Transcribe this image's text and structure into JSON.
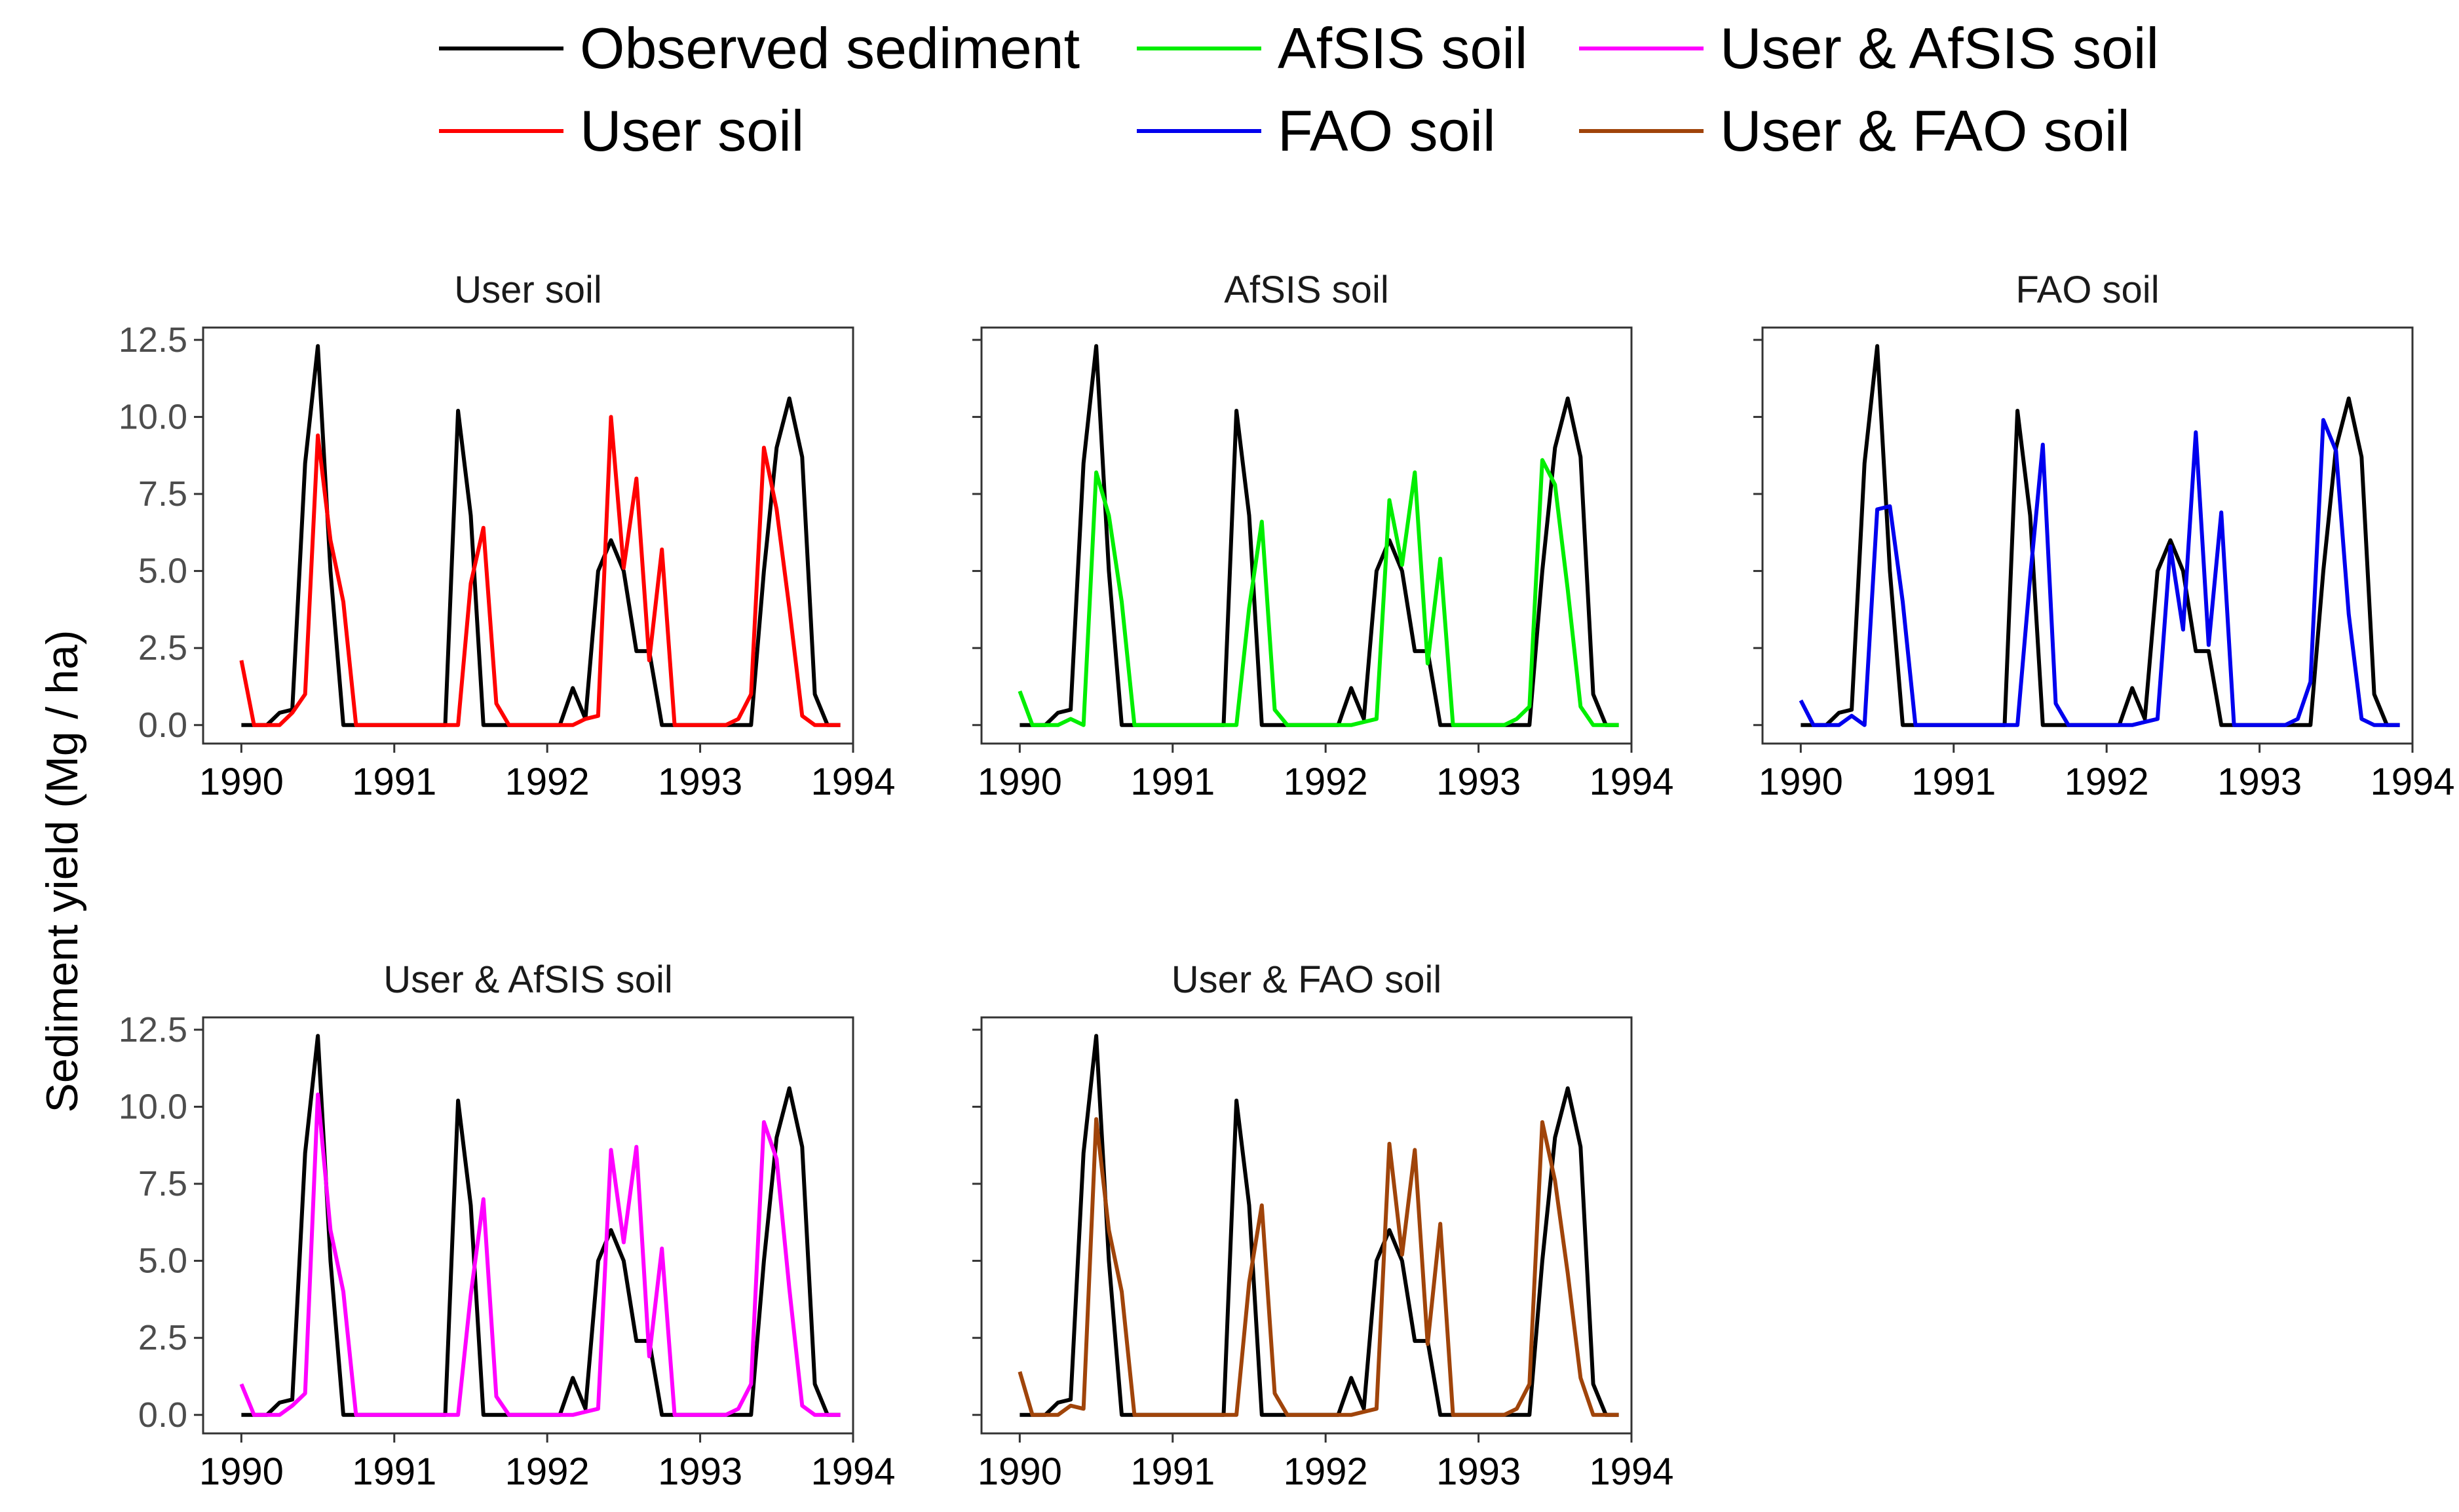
{
  "colors": {
    "Observed sediment": "#000000",
    "User soil": "#ff0000",
    "AfSIS soil": "#00ee00",
    "FAO soil": "#0000ee",
    "User & AfSIS soil": "#ff00ff",
    "User & FAO soil": "#a0440a"
  },
  "chart_data": {
    "type": "line",
    "ylabel": "Sediment yield (Mg / ha)",
    "xlabel": "",
    "xlim": [
      1989.75,
      1994.0
    ],
    "ylim": [
      -0.6,
      12.9
    ],
    "x_ticks": [
      1990,
      1991,
      1992,
      1993,
      1994
    ],
    "x_tick_labels": [
      "1990",
      "1991",
      "1992",
      "1993",
      "1994"
    ],
    "y_ticks": [
      0,
      2.5,
      5,
      7.5,
      10,
      12.5
    ],
    "y_tick_labels": [
      "0.0",
      "2.5",
      "5.0",
      "7.5",
      "10.0",
      "12.5"
    ],
    "legend": {
      "position": "top",
      "entries": [
        "Observed sediment",
        "AfSIS soil",
        "User & AfSIS soil",
        "User soil",
        "FAO soil",
        "User & FAO soil"
      ]
    },
    "x": [
      1990.0,
      1990.083,
      1990.167,
      1990.25,
      1990.333,
      1990.417,
      1990.5,
      1990.583,
      1990.667,
      1990.75,
      1990.833,
      1990.917,
      1991.0,
      1991.083,
      1991.167,
      1991.25,
      1991.333,
      1991.417,
      1991.5,
      1991.583,
      1991.667,
      1991.75,
      1991.833,
      1991.917,
      1992.0,
      1992.083,
      1992.167,
      1992.25,
      1992.333,
      1992.417,
      1992.5,
      1992.583,
      1992.667,
      1992.75,
      1992.833,
      1992.917,
      1993.0,
      1993.083,
      1993.167,
      1993.25,
      1993.333,
      1993.417,
      1993.5,
      1993.583,
      1993.667,
      1993.75,
      1993.833,
      1993.917
    ],
    "observed": {
      "name": "Observed sediment",
      "values": [
        0,
        0,
        0,
        0.4,
        0.5,
        8.5,
        12.3,
        5,
        0,
        0,
        0,
        0,
        0,
        0,
        0,
        0,
        0,
        10.2,
        6.8,
        0,
        0,
        0,
        0,
        0,
        0,
        0,
        1.2,
        0.2,
        5,
        6,
        5,
        2.4,
        2.4,
        0,
        0,
        0,
        0,
        0,
        0,
        0,
        0,
        5,
        9,
        10.6,
        8.7,
        1,
        0,
        0
      ]
    },
    "panels": [
      {
        "title": "User soil",
        "name": "User soil",
        "values": [
          2.1,
          0,
          0,
          0,
          0.4,
          1,
          9.4,
          6,
          4,
          0,
          0,
          0,
          0,
          0,
          0,
          0,
          0,
          0,
          4.6,
          6.4,
          0.7,
          0,
          0,
          0,
          0,
          0,
          0,
          0.2,
          0.3,
          10,
          5.1,
          8,
          2.1,
          5.7,
          0,
          0,
          0,
          0,
          0,
          0.2,
          1,
          9,
          7,
          3.8,
          0.3,
          0,
          0,
          0
        ]
      },
      {
        "title": "AfSIS soil",
        "name": "AfSIS soil",
        "values": [
          1.1,
          0,
          0,
          0,
          0.2,
          0,
          8.2,
          6.8,
          4,
          0,
          0,
          0,
          0,
          0,
          0,
          0,
          0,
          0,
          3.8,
          6.6,
          0.5,
          0,
          0,
          0,
          0,
          0,
          0,
          0.1,
          0.2,
          7.3,
          5.2,
          8.2,
          2,
          5.4,
          0,
          0,
          0,
          0,
          0,
          0.2,
          0.6,
          8.6,
          7.8,
          4.4,
          0.6,
          0,
          0,
          0
        ]
      },
      {
        "title": "FAO soil",
        "name": "FAO soil",
        "values": [
          0.8,
          0,
          0,
          0,
          0.3,
          0,
          7,
          7.1,
          4,
          0,
          0,
          0,
          0,
          0,
          0,
          0,
          0,
          0,
          4.8,
          9.1,
          0.7,
          0,
          0,
          0,
          0,
          0,
          0,
          0.1,
          0.2,
          5.8,
          3.1,
          9.5,
          2.6,
          6.9,
          0,
          0,
          0,
          0,
          0,
          0.2,
          1.4,
          9.9,
          8.9,
          3.6,
          0.2,
          0,
          0,
          0
        ]
      },
      {
        "title": "User & AfSIS soil",
        "name": "User & AfSIS soil",
        "values": [
          1,
          0,
          0,
          0,
          0.3,
          0.7,
          10.4,
          6,
          4,
          0,
          0,
          0,
          0,
          0,
          0,
          0,
          0,
          0,
          3.9,
          7,
          0.6,
          0,
          0,
          0,
          0,
          0,
          0,
          0.1,
          0.2,
          8.6,
          5.6,
          8.7,
          1.9,
          5.4,
          0,
          0,
          0,
          0,
          0,
          0.2,
          1,
          9.5,
          8.3,
          4.1,
          0.3,
          0,
          0,
          0
        ]
      },
      {
        "title": "User & FAO soil",
        "name": "User & FAO soil",
        "values": [
          1.4,
          0,
          0,
          0,
          0.3,
          0.2,
          9.6,
          6,
          4,
          0,
          0,
          0,
          0,
          0,
          0,
          0,
          0,
          0,
          4.3,
          6.8,
          0.7,
          0,
          0,
          0,
          0,
          0,
          0,
          0.1,
          0.2,
          8.8,
          5.2,
          8.6,
          2.3,
          6.2,
          0,
          0,
          0,
          0,
          0,
          0.2,
          1,
          9.5,
          7.6,
          4.6,
          1.2,
          0,
          0,
          0
        ]
      }
    ]
  }
}
